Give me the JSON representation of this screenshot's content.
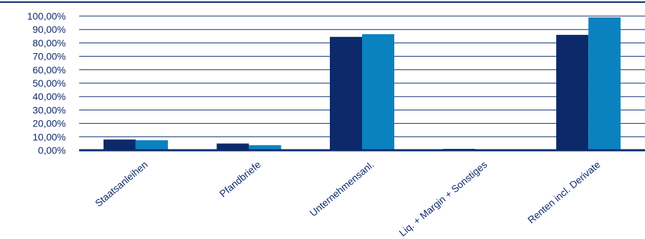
{
  "chart_data": {
    "type": "bar",
    "categories": [
      "Staatsanleihen",
      "Pfandbriefe",
      "Unternehmensanl.",
      "Liq. + Margin + Sonstiges",
      "Renten incl. Derivate"
    ],
    "series": [
      {
        "values": [
          8.0,
          5.0,
          84.5,
          1.0,
          86.0
        ],
        "color": "#0c2a6a"
      },
      {
        "values": [
          7.5,
          3.8,
          86.5,
          0.3,
          99.0
        ],
        "color": "#0b82c0"
      }
    ],
    "y_ticks": [
      "0,00%",
      "10,00%",
      "20,00%",
      "30,00%",
      "40,00%",
      "50,00%",
      "60,00%",
      "70,00%",
      "80,00%",
      "90,00%",
      "100,00%"
    ],
    "ylim": [
      0,
      100
    ],
    "grid": true,
    "title": "",
    "xlabel": "",
    "ylabel": ""
  },
  "colors": {
    "axis": "#0d2a6b",
    "grid": "#0d2a6b",
    "text": "#0d2a6b"
  }
}
